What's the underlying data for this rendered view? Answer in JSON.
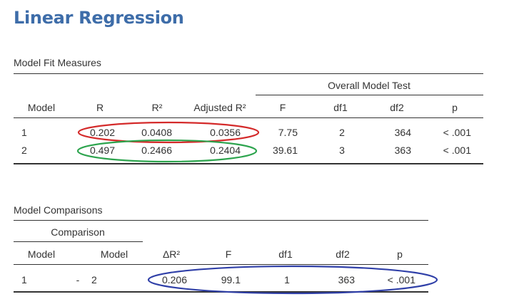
{
  "title": "Linear Regression",
  "model_fit": {
    "caption": "Model Fit Measures",
    "group_header": "Overall Model Test",
    "headers": [
      "Model",
      "R",
      "R²",
      "Adjusted R²",
      "F",
      "df1",
      "df2",
      "p"
    ],
    "rows": [
      [
        "1",
        "0.202",
        "0.0408",
        "0.0356",
        "7.75",
        "2",
        "364",
        "< .001"
      ],
      [
        "2",
        "0.497",
        "0.2466",
        "0.2404",
        "39.61",
        "3",
        "363",
        "< .001"
      ]
    ]
  },
  "model_comparisons": {
    "caption": "Model Comparisons",
    "group_header": "Comparison",
    "headers": [
      "Model",
      "Model",
      "ΔR²",
      "F",
      "df1",
      "df2",
      "p"
    ],
    "rows": [
      [
        "1",
        "-",
        "2",
        "0.206",
        "99.1",
        "1",
        "363",
        "< .001"
      ]
    ]
  },
  "annotations": {
    "red_ellipse_color": "#d42a2a",
    "green_ellipse_color": "#2da44e",
    "blue_ellipse_color": "#3040a8"
  }
}
